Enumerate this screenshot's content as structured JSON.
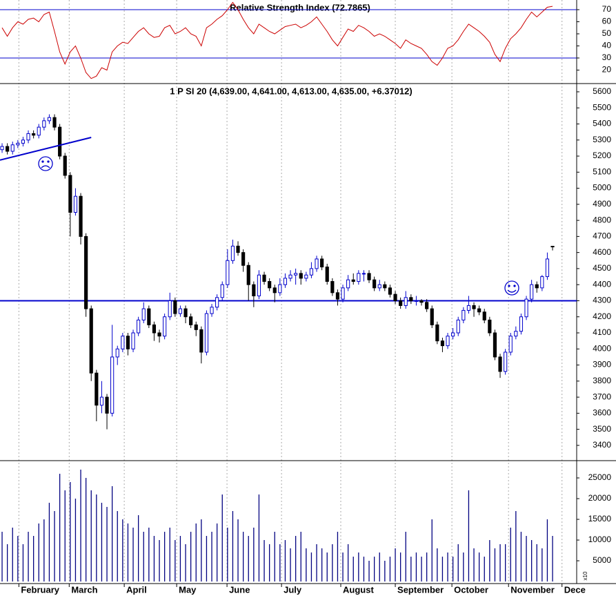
{
  "chart_data": [
    {
      "type": "line",
      "title": "Relative Strength Index (72.7865)",
      "ylim": [
        9.4,
        78
      ],
      "yticks": [
        20,
        30,
        40,
        50,
        60,
        70
      ],
      "hlines": [
        30,
        70
      ],
      "hline_color": "#0000cc",
      "xlim": [
        -0.4,
        109.6
      ],
      "series": [
        {
          "name": "RSI",
          "color": "#cc0000",
          "values": [
            55,
            48,
            55,
            60,
            58,
            62,
            63,
            60,
            66,
            68,
            52,
            35,
            25,
            35,
            40,
            30,
            18,
            13,
            15,
            22,
            20,
            35,
            40,
            43,
            42,
            47,
            52,
            55,
            50,
            47,
            48,
            55,
            57,
            50,
            52,
            55,
            50,
            48,
            40,
            55,
            58,
            62,
            65,
            70,
            76,
            70,
            62,
            55,
            50,
            58,
            55,
            52,
            50,
            53,
            56,
            57,
            58,
            55,
            57,
            60,
            64,
            58,
            52,
            45,
            40,
            47,
            54,
            52,
            57,
            55,
            52,
            48,
            50,
            48,
            45,
            42,
            38,
            45,
            42,
            40,
            38,
            33,
            27,
            24,
            30,
            38,
            40,
            45,
            52,
            58,
            55,
            52,
            48,
            43,
            33,
            27,
            38,
            46,
            50,
            55,
            62,
            68,
            64,
            68,
            72,
            72.7865
          ]
        }
      ]
    },
    {
      "type": "candlestick",
      "title": "1 P SI 20 (4,639.00, 4,641.00, 4,613.00, 4,635.00, +6.37012)",
      "ylim": [
        3305,
        5647
      ],
      "yticks": [
        3400,
        3500,
        3600,
        3700,
        3800,
        3900,
        4000,
        4100,
        4200,
        4300,
        4400,
        4500,
        4600,
        4700,
        4800,
        4900,
        5000,
        5100,
        5200,
        5300,
        5400,
        5500,
        5600
      ],
      "hlines": [
        4300
      ],
      "hline_color": "#0000cc",
      "up_color": "#0000cc",
      "down_color": "#000000",
      "xlim": [
        -0.4,
        109.6
      ],
      "trendline": {
        "x": [
          -0.4,
          17
        ],
        "y": [
          5175,
          5316
        ]
      },
      "open": [
        5240,
        5260,
        5230,
        5270,
        5280,
        5300,
        5340,
        5330,
        5380,
        5420,
        5440,
        5380,
        5200,
        5080,
        4850,
        4950,
        4700,
        4250,
        3850,
        3650,
        3700,
        3600,
        3950,
        4000,
        4080,
        4000,
        4100,
        4180,
        4250,
        4150,
        4100,
        4080,
        4200,
        4300,
        4220,
        4250,
        4200,
        4150,
        4120,
        3980,
        4220,
        4260,
        4320,
        4400,
        4550,
        4640,
        4600,
        4520,
        4400,
        4330,
        4460,
        4420,
        4380,
        4350,
        4400,
        4440,
        4460,
        4470,
        4440,
        4460,
        4500,
        4560,
        4510,
        4420,
        4350,
        4310,
        4380,
        4430,
        4420,
        4470,
        4470,
        4430,
        4380,
        4400,
        4380,
        4340,
        4300,
        4270,
        4320,
        4300,
        4300,
        4290,
        4250,
        4150,
        4050,
        4020,
        4080,
        4100,
        4180,
        4240,
        4270,
        4250,
        4230,
        4180,
        4100,
        3950,
        3860,
        3980,
        4080,
        4110,
        4200,
        4310,
        4400,
        4380,
        4450,
        4639
      ],
      "high": [
        5280,
        5280,
        5290,
        5300,
        5320,
        5360,
        5360,
        5400,
        5440,
        5460,
        5460,
        5400,
        5220,
        5100,
        5000,
        4970,
        4720,
        4270,
        3870,
        3800,
        3720,
        4150,
        4020,
        4100,
        4100,
        4120,
        4200,
        4290,
        4270,
        4170,
        4120,
        4220,
        4350,
        4320,
        4270,
        4270,
        4220,
        4170,
        4140,
        4240,
        4280,
        4340,
        4420,
        4620,
        4680,
        4670,
        4620,
        4540,
        4420,
        4490,
        4480,
        4440,
        4400,
        4440,
        4470,
        4490,
        4500,
        4490,
        4480,
        4540,
        4580,
        4580,
        4530,
        4440,
        4370,
        4400,
        4460,
        4470,
        4490,
        4490,
        4490,
        4450,
        4430,
        4420,
        4400,
        4360,
        4320,
        4360,
        4340,
        4330,
        4310,
        4310,
        4270,
        4170,
        4070,
        4100,
        4130,
        4200,
        4260,
        4330,
        4290,
        4270,
        4250,
        4200,
        4120,
        3970,
        4000,
        4100,
        4140,
        4220,
        4330,
        4430,
        4420,
        4460,
        4600,
        4641
      ],
      "low": [
        5220,
        5210,
        5210,
        5250,
        5260,
        5280,
        5310,
        5310,
        5360,
        5400,
        5360,
        5180,
        5060,
        4700,
        4830,
        4650,
        4200,
        3800,
        3550,
        3600,
        3500,
        3580,
        3900,
        3980,
        3960,
        3980,
        4080,
        4160,
        4130,
        4050,
        4040,
        4060,
        4180,
        4200,
        4200,
        4160,
        4130,
        4080,
        3910,
        3960,
        4200,
        4240,
        4300,
        4380,
        4530,
        4580,
        4480,
        4300,
        4260,
        4310,
        4400,
        4360,
        4290,
        4330,
        4380,
        4420,
        4400,
        4400,
        4420,
        4440,
        4480,
        4490,
        4400,
        4330,
        4270,
        4290,
        4360,
        4400,
        4400,
        4420,
        4410,
        4360,
        4360,
        4360,
        4320,
        4280,
        4250,
        4250,
        4280,
        4270,
        4270,
        4230,
        4130,
        4030,
        3980,
        4000,
        4060,
        4080,
        4160,
        4220,
        4200,
        4210,
        4160,
        4080,
        3930,
        3820,
        3840,
        3960,
        4060,
        4090,
        4180,
        4290,
        4350,
        4360,
        4430,
        4613
      ],
      "close": [
        5260,
        5230,
        5270,
        5280,
        5300,
        5340,
        5330,
        5380,
        5420,
        5440,
        5380,
        5200,
        5080,
        4850,
        4950,
        4700,
        4250,
        3850,
        3650,
        3700,
        3600,
        3950,
        4000,
        4080,
        4000,
        4100,
        4180,
        4250,
        4150,
        4100,
        4080,
        4200,
        4300,
        4220,
        4250,
        4200,
        4150,
        4120,
        3980,
        4220,
        4260,
        4320,
        4400,
        4550,
        4640,
        4600,
        4520,
        4400,
        4330,
        4460,
        4420,
        4380,
        4350,
        4400,
        4440,
        4460,
        4470,
        4440,
        4460,
        4500,
        4560,
        4510,
        4420,
        4350,
        4310,
        4380,
        4430,
        4420,
        4470,
        4470,
        4430,
        4380,
        4400,
        4380,
        4340,
        4300,
        4270,
        4320,
        4300,
        4300,
        4290,
        4250,
        4150,
        4050,
        4020,
        4080,
        4100,
        4180,
        4240,
        4270,
        4250,
        4230,
        4180,
        4100,
        3950,
        3860,
        3980,
        4080,
        4110,
        4200,
        4310,
        4400,
        4380,
        4450,
        4560,
        4635
      ]
    },
    {
      "type": "bar",
      "axis_note": "x10",
      "color": "#000080",
      "ylim": [
        -500,
        29170
      ],
      "yticks": [
        5000,
        10000,
        15000,
        20000,
        25000
      ],
      "xlim": [
        -0.4,
        109.6
      ],
      "xticks": [
        {
          "value": 3.2,
          "label": "February"
        },
        {
          "value": 12.8,
          "label": "March"
        },
        {
          "value": 23.3,
          "label": "April"
        },
        {
          "value": 33.3,
          "label": "May"
        },
        {
          "value": 42.9,
          "label": "June"
        },
        {
          "value": 53.3,
          "label": "July"
        },
        {
          "value": 64.6,
          "label": "August"
        },
        {
          "value": 75,
          "label": "September"
        },
        {
          "value": 85.8,
          "label": "October"
        },
        {
          "value": 96.6,
          "label": "November"
        },
        {
          "value": 106.8,
          "label": "Dece"
        }
      ],
      "values": [
        12000,
        9000,
        13000,
        11000,
        9000,
        12000,
        11000,
        14000,
        15000,
        19000,
        17000,
        26000,
        22000,
        24000,
        20000,
        27000,
        25000,
        22000,
        21000,
        19000,
        18000,
        23000,
        17000,
        15000,
        14000,
        13000,
        16000,
        12000,
        13000,
        11000,
        10000,
        12000,
        13000,
        10000,
        11000,
        9000,
        12000,
        14000,
        15000,
        11000,
        12000,
        14000,
        21000,
        13000,
        17000,
        15000,
        12000,
        11000,
        13000,
        21000,
        10000,
        9000,
        12000,
        9000,
        10000,
        8000,
        11000,
        12000,
        8000,
        7000,
        9000,
        8000,
        7000,
        9000,
        12000,
        7000,
        9000,
        6000,
        7000,
        6000,
        5000,
        6000,
        7000,
        5000,
        6000,
        8000,
        7000,
        12000,
        6000,
        7000,
        6000,
        7000,
        15000,
        8000,
        6000,
        7000,
        6000,
        9000,
        7000,
        22000,
        8000,
        7000,
        6000,
        10000,
        8000,
        9000,
        9000,
        13000,
        17000,
        12000,
        11000,
        10000,
        9000,
        8000,
        15000,
        11000
      ]
    }
  ]
}
